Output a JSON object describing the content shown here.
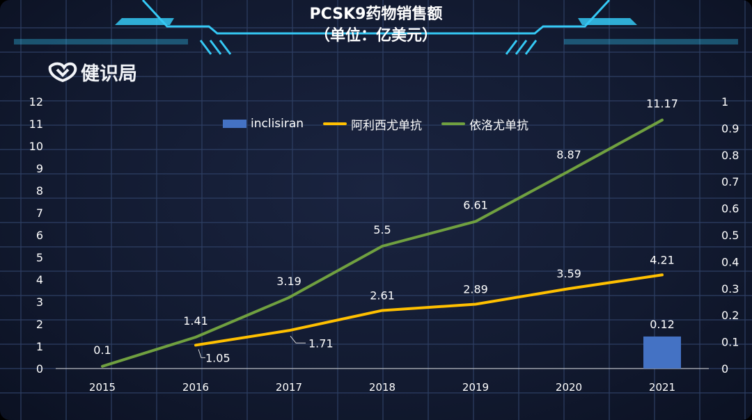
{
  "title": "PCSK9药物销售额",
  "subtitle": "（单位：亿美元）",
  "watermark": "健识局",
  "colors": {
    "background": "#141c33",
    "grid": "#2e3f63",
    "bar": "#4472c4",
    "alirocumab": "#ffc000",
    "evolocumab": "#70a040",
    "accent": "#35c9f5"
  },
  "chart_data": {
    "type": "line",
    "categories": [
      "2015",
      "2016",
      "2017",
      "2018",
      "2019",
      "2020",
      "2021"
    ],
    "series": [
      {
        "name": "inclisiran",
        "type": "bar",
        "axis": "right",
        "values": [
          null,
          null,
          null,
          null,
          null,
          null,
          0.12
        ],
        "labels": [
          "",
          "",
          "",
          "",
          "",
          "",
          "0.12"
        ]
      },
      {
        "name": "阿利西尤单抗",
        "type": "line",
        "axis": "left",
        "values": [
          null,
          1.05,
          1.71,
          2.61,
          2.89,
          3.59,
          4.21
        ],
        "labels": [
          "",
          "1.05",
          "1.71",
          "2.61",
          "2.89",
          "3.59",
          "4.21"
        ]
      },
      {
        "name": "依洛尤单抗",
        "type": "line",
        "axis": "left",
        "values": [
          0.1,
          1.41,
          3.19,
          5.5,
          6.61,
          8.87,
          11.17
        ],
        "labels": [
          "0.1",
          "1.41",
          "3.19",
          "5.5",
          "6.61",
          "8.87",
          "11.17"
        ]
      }
    ],
    "y_left": {
      "min": 0,
      "max": 12,
      "ticks": [
        "0",
        "1",
        "2",
        "3",
        "4",
        "5",
        "6",
        "7",
        "8",
        "9",
        "10",
        "11",
        "12"
      ]
    },
    "y_right": {
      "min": 0,
      "max": 1,
      "ticks": [
        "0",
        "0.1",
        "0.2",
        "0.3",
        "0.4",
        "0.5",
        "0.6",
        "0.7",
        "0.8",
        "0.9",
        "1"
      ]
    },
    "legend_position": "top",
    "grid": true
  }
}
